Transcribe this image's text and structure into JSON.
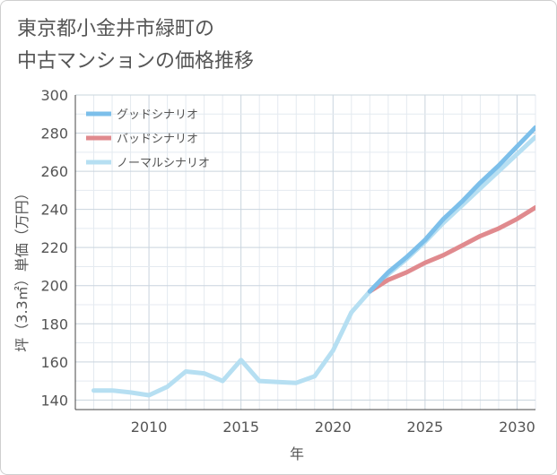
{
  "chart_data": {
    "type": "line",
    "title_lines": [
      "東京都小金井市緑町の",
      "中古マンションの価格推移"
    ],
    "xlabel": "年",
    "ylabel": "坪（3.3㎡）単価（万円）",
    "xlim": [
      2006,
      2031
    ],
    "ylim": [
      135,
      300
    ],
    "x_ticks": [
      2010,
      2015,
      2020,
      2025,
      2030
    ],
    "y_ticks": [
      140,
      160,
      180,
      200,
      220,
      240,
      260,
      280,
      300
    ],
    "grid": true,
    "legend_position": "top-left",
    "series": [
      {
        "name": "グッドシナリオ",
        "color": "#7cbfea",
        "x": [
          2022,
          2023,
          2024,
          2025,
          2026,
          2027,
          2028,
          2029,
          2030,
          2031
        ],
        "values": [
          197,
          207,
          215,
          224,
          235,
          244,
          254,
          263,
          273,
          283
        ]
      },
      {
        "name": "バッドシナリオ",
        "color": "#e08a8e",
        "x": [
          2022,
          2023,
          2024,
          2025,
          2026,
          2027,
          2028,
          2029,
          2030,
          2031
        ],
        "values": [
          197,
          203,
          207,
          212,
          216,
          221,
          226,
          230,
          235,
          241
        ]
      },
      {
        "name": "ノーマルシナリオ",
        "color": "#b6dff2",
        "x": [
          2007,
          2008,
          2009,
          2010,
          2011,
          2012,
          2013,
          2014,
          2015,
          2016,
          2017,
          2018,
          2019,
          2020,
          2021,
          2022,
          2023,
          2024,
          2025,
          2026,
          2027,
          2028,
          2029,
          2030,
          2031
        ],
        "values": [
          145,
          145,
          144,
          142.5,
          147,
          155,
          154,
          150,
          161,
          150,
          149.5,
          149,
          152.5,
          166,
          186,
          197,
          206,
          214,
          223,
          233,
          242,
          251,
          260,
          269,
          278
        ]
      }
    ]
  }
}
